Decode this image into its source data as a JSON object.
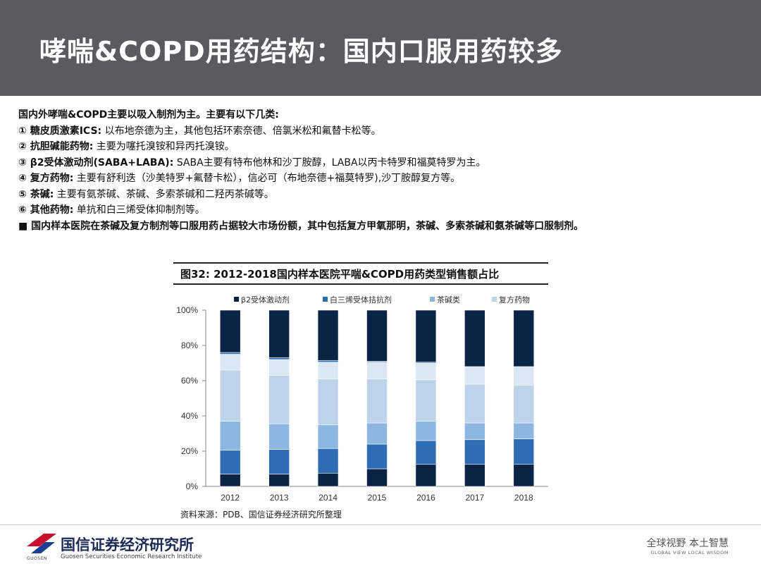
{
  "header": {
    "title": "哮喘&COPD用药结构：国内口服用药较多"
  },
  "bullets": [
    {
      "bold": "国内外哮喘&COPD主要以吸入制剂为主。主要有以下几类:",
      "text": ""
    },
    {
      "bold": "① 糖皮质激素ICS:",
      "text": " 以布地奈德为主，其他包括环索奈德、倍氯米松和氟替卡松等。"
    },
    {
      "bold": "② 抗胆碱能药物:",
      "text": " 主要为噻托溴铵和异丙托溴铵。"
    },
    {
      "bold": "③ β2受体激动剂(SABA+LABA):",
      "text": " SABA主要有特布他林和沙丁胺醇，LABA以丙卡特罗和福莫特罗为主。"
    },
    {
      "bold": "④ 复方药物:",
      "text": " 主要有舒利迭（沙美特罗+氟替卡松），信必可（布地奈德+福莫特罗),沙丁胺醇复方等。"
    },
    {
      "bold": "⑤ 茶碱:",
      "text": " 主要有氨茶碱、茶碱、多索茶碱和二羟丙茶碱等。"
    },
    {
      "bold": "⑥ 其他药物:",
      "text": " 单抗和白三烯受体抑制剂等。"
    },
    {
      "bold": "■ 国内样本医院在茶碱及复方制剂等口服用药占据较大市场份额，其中包括复方甲氧那明，茶碱、多索茶碱和氨茶碱等口服制剂。",
      "text": ""
    }
  ],
  "figure": {
    "title": "图32:  2012-2018国内样本医院平喘&COPD用药类型销售额占比",
    "source": "资料来源：PDB、国信证券经济研究所整理"
  },
  "chart_data": {
    "type": "bar",
    "stacked": true,
    "categories": [
      "2012",
      "2013",
      "2014",
      "2015",
      "2016",
      "2017",
      "2018"
    ],
    "series": [
      {
        "name": "β2受体激动剂",
        "color": "#0b2345",
        "values": [
          7,
          7,
          7.5,
          10,
          12.5,
          12.5,
          12.5
        ]
      },
      {
        "name": "白三烯受体拮抗剂",
        "color": "#2e6db3",
        "values": [
          13.5,
          14,
          14,
          14,
          13.5,
          14,
          14.5
        ]
      },
      {
        "name": "茶碱类",
        "color": "#8db6e0",
        "values": [
          16.5,
          14.5,
          13.5,
          12,
          11,
          9.5,
          9
        ]
      },
      {
        "name": "复方药物",
        "color": "#bcd3ea",
        "values": [
          29,
          27.5,
          26,
          25,
          23.5,
          22,
          21.5
        ]
      },
      {
        "name": "",
        "color": "#dbe7f3",
        "values": [
          9,
          9,
          9.5,
          9.5,
          9.5,
          10,
          10.5
        ]
      },
      {
        "name": "",
        "color": "#2e6db3",
        "values": [
          1,
          1,
          1,
          0.5,
          0.5,
          0,
          0
        ]
      },
      {
        "name": "",
        "color": "#0b2345",
        "values": [
          24,
          27,
          28.5,
          29,
          29.5,
          32,
          32
        ]
      }
    ],
    "yticks": [
      "0%",
      "20%",
      "40%",
      "60%",
      "80%",
      "100%"
    ],
    "ylim": [
      0,
      100
    ],
    "legend_position": "top"
  },
  "footer": {
    "org_name": "国信证券经济研究所",
    "org_en": "Guosen Securities Economic Research Institute",
    "logo_text": "GUOSEN",
    "slogan": "全球视野  本土智慧",
    "slogan_en": "GLOBAL VIEW  LOCAL WISDOM",
    "logo_colors": [
      "#c8102e",
      "#1c3f94"
    ]
  }
}
